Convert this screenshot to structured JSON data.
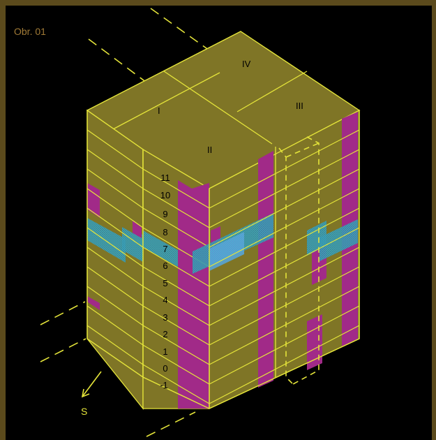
{
  "figure_label": "Obr. 01",
  "blocks": [
    {
      "id": "I",
      "label": "I"
    },
    {
      "id": "II",
      "label": "II"
    },
    {
      "id": "III",
      "label": "III"
    },
    {
      "id": "IV",
      "label": "IV"
    }
  ],
  "floors": [
    "11",
    "10",
    "9",
    "8",
    "7",
    "6",
    "5",
    "4",
    "3",
    "2",
    "1",
    "0",
    "-1"
  ],
  "orientation": {
    "label": "S",
    "meaning": "south arrow"
  },
  "colors": {
    "background_frame": "#5b4a1c",
    "canvas": "#000000",
    "facade_fill": "#7f7526",
    "edge_lines": "#e4e43a",
    "vertical_core": "#a12a88",
    "highlight_band": "#3fb0c0",
    "label_text": "#000000",
    "figure_label_text": "#a07a36"
  }
}
